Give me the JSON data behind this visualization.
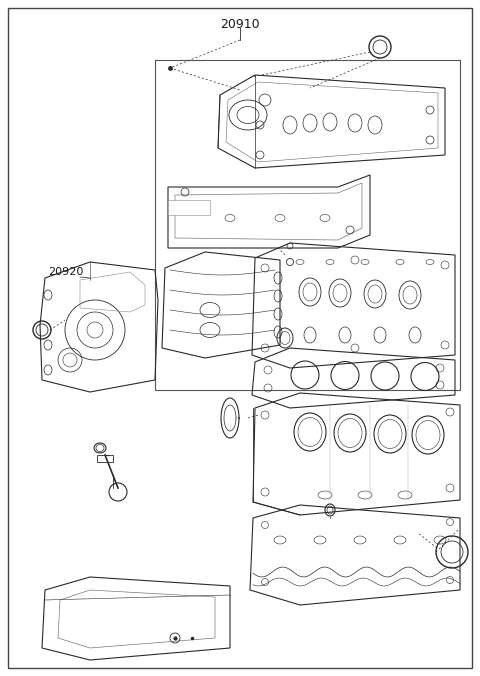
{
  "title": "20910",
  "label_20920": "20920",
  "bg_color": "#ffffff",
  "line_color": "#2a2a2a",
  "border_color": "#444444",
  "text_color": "#1a1a1a",
  "fig_width": 4.8,
  "fig_height": 6.76,
  "dpi": 100
}
